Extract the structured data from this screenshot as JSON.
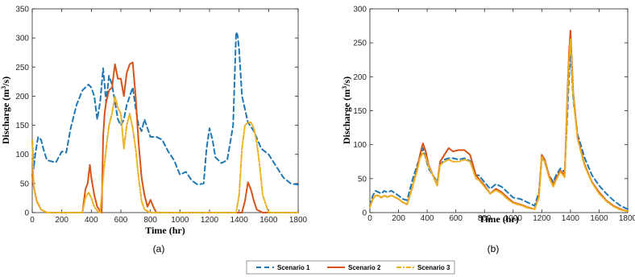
{
  "legend": {
    "items": [
      {
        "label": "Scenario 1",
        "color": "#1f77b4",
        "dash": "6,4"
      },
      {
        "label": "Scenario 2",
        "color": "#d95319",
        "dash": ""
      },
      {
        "label": "Scenario 3",
        "color": "#edb120",
        "dash": "6,2,2,2"
      }
    ]
  },
  "chart_data": [
    {
      "type": "line",
      "panel": "a",
      "caption": "(a)",
      "xlabel": "Time (hr)",
      "ylabel_main": "Discharge (m",
      "ylabel_sup": "3",
      "ylabel_end": "/s)",
      "xlim": [
        0,
        1800
      ],
      "ylim": [
        0,
        350
      ],
      "xticks": [
        0,
        200,
        400,
        600,
        800,
        1000,
        1200,
        1400,
        1600,
        1800
      ],
      "yticks": [
        0,
        50,
        100,
        150,
        200,
        250,
        300,
        350
      ],
      "series": [
        {
          "name": "Scenario 1",
          "x": [
            0,
            10,
            20,
            40,
            60,
            80,
            100,
            130,
            160,
            200,
            230,
            260,
            300,
            340,
            380,
            400,
            420,
            440,
            460,
            480,
            500,
            520,
            540,
            560,
            580,
            600,
            620,
            640,
            660,
            680,
            700,
            720,
            740,
            760,
            780,
            800,
            840,
            880,
            920,
            960,
            1000,
            1040,
            1080,
            1120,
            1160,
            1180,
            1200,
            1220,
            1240,
            1280,
            1320,
            1360,
            1380,
            1390,
            1400,
            1420,
            1460,
            1500,
            1550,
            1600,
            1650,
            1700,
            1750,
            1800
          ],
          "y": [
            125,
            75,
            100,
            130,
            125,
            105,
            90,
            88,
            86,
            105,
            103,
            145,
            185,
            210,
            220,
            215,
            200,
            160,
            190,
            248,
            190,
            235,
            220,
            190,
            160,
            150,
            160,
            185,
            200,
            215,
            180,
            150,
            140,
            160,
            145,
            130,
            130,
            125,
            105,
            90,
            65,
            70,
            55,
            48,
            50,
            110,
            145,
            125,
            95,
            85,
            90,
            150,
            310,
            305,
            280,
            200,
            155,
            140,
            110,
            100,
            80,
            60,
            50,
            48
          ]
        },
        {
          "name": "Scenario 2",
          "x": [
            0,
            10,
            30,
            60,
            100,
            150,
            200,
            250,
            300,
            340,
            360,
            375,
            390,
            400,
            420,
            440,
            460,
            470,
            480,
            490,
            500,
            520,
            540,
            560,
            580,
            600,
            620,
            640,
            660,
            680,
            700,
            720,
            740,
            760,
            780,
            800,
            820,
            840,
            900,
            1000,
            1100,
            1200,
            1300,
            1420,
            1440,
            1460,
            1480,
            1500,
            1520,
            1560,
            1600,
            1700,
            1800
          ],
          "y": [
            65,
            45,
            20,
            5,
            0,
            0,
            0,
            0,
            0,
            0,
            40,
            50,
            82,
            60,
            30,
            10,
            3,
            0,
            130,
            170,
            190,
            210,
            215,
            255,
            230,
            230,
            200,
            240,
            255,
            258,
            200,
            120,
            60,
            30,
            10,
            22,
            10,
            0,
            0,
            0,
            0,
            0,
            0,
            0,
            20,
            52,
            40,
            20,
            5,
            0,
            0,
            0,
            0
          ]
        },
        {
          "name": "Scenario 3",
          "x": [
            0,
            10,
            30,
            60,
            100,
            150,
            200,
            250,
            300,
            340,
            360,
            380,
            400,
            420,
            440,
            460,
            480,
            500,
            520,
            540,
            560,
            580,
            600,
            620,
            630,
            640,
            660,
            680,
            700,
            720,
            740,
            760,
            800,
            900,
            1000,
            1100,
            1200,
            1300,
            1380,
            1400,
            1420,
            1440,
            1460,
            1480,
            1500,
            1520,
            1540,
            1560,
            1600,
            1700,
            1800
          ],
          "y": [
            125,
            45,
            20,
            5,
            0,
            0,
            0,
            0,
            0,
            0,
            25,
            35,
            25,
            10,
            3,
            0,
            60,
            110,
            150,
            170,
            200,
            180,
            170,
            110,
            130,
            150,
            170,
            145,
            110,
            60,
            20,
            5,
            0,
            0,
            0,
            0,
            0,
            0,
            0,
            30,
            110,
            150,
            155,
            155,
            145,
            120,
            80,
            30,
            0,
            0,
            0
          ]
        }
      ]
    },
    {
      "type": "line",
      "panel": "b",
      "caption": "(b)",
      "xlabel": "Time (hr)",
      "ylabel_main": "Discharge (m",
      "ylabel_sup": "3",
      "ylabel_end": "/s)",
      "xlim": [
        0,
        1800
      ],
      "ylim": [
        0,
        300
      ],
      "xticks": [
        0,
        200,
        400,
        600,
        800,
        1000,
        1200,
        1400,
        1600,
        1800
      ],
      "yticks": [
        0,
        50,
        100,
        150,
        200,
        250,
        300
      ],
      "series": [
        {
          "name": "Scenario 1",
          "x": [
            0,
            20,
            40,
            60,
            80,
            100,
            120,
            150,
            180,
            200,
            230,
            260,
            300,
            330,
            350,
            370,
            390,
            410,
            440,
            470,
            490,
            520,
            550,
            580,
            620,
            660,
            700,
            740,
            760,
            800,
            840,
            880,
            920,
            960,
            1000,
            1050,
            1100,
            1150,
            1180,
            1200,
            1220,
            1250,
            1280,
            1300,
            1330,
            1360,
            1380,
            1390,
            1400,
            1420,
            1450,
            1500,
            1550,
            1600,
            1650,
            1700,
            1750,
            1800
          ],
          "y": [
            10,
            25,
            32,
            30,
            28,
            32,
            30,
            32,
            28,
            25,
            20,
            18,
            50,
            70,
            82,
            95,
            80,
            65,
            55,
            45,
            70,
            78,
            80,
            80,
            78,
            80,
            76,
            55,
            55,
            45,
            35,
            42,
            38,
            30,
            22,
            20,
            15,
            10,
            30,
            80,
            75,
            55,
            45,
            55,
            65,
            60,
            150,
            200,
            240,
            165,
            115,
            80,
            55,
            40,
            28,
            18,
            10,
            5
          ]
        },
        {
          "name": "Scenario 2",
          "x": [
            0,
            20,
            40,
            60,
            80,
            100,
            120,
            150,
            180,
            200,
            230,
            260,
            300,
            330,
            350,
            370,
            390,
            410,
            440,
            470,
            490,
            520,
            550,
            580,
            620,
            660,
            700,
            740,
            760,
            800,
            840,
            880,
            920,
            960,
            1000,
            1050,
            1100,
            1150,
            1180,
            1200,
            1220,
            1250,
            1280,
            1300,
            1330,
            1360,
            1380,
            1390,
            1400,
            1420,
            1450,
            1500,
            1550,
            1600,
            1650,
            1700,
            1750,
            1800
          ],
          "y": [
            8,
            20,
            25,
            25,
            22,
            25,
            23,
            25,
            22,
            20,
            15,
            12,
            40,
            65,
            85,
            102,
            90,
            70,
            55,
            40,
            75,
            85,
            95,
            90,
            92,
            92,
            85,
            55,
            50,
            40,
            28,
            35,
            30,
            22,
            15,
            12,
            8,
            5,
            25,
            85,
            78,
            55,
            40,
            50,
            62,
            55,
            180,
            235,
            268,
            175,
            110,
            70,
            45,
            30,
            18,
            10,
            5,
            2
          ]
        },
        {
          "name": "Scenario 3",
          "x": [
            0,
            20,
            40,
            60,
            80,
            100,
            120,
            150,
            180,
            200,
            230,
            260,
            300,
            330,
            350,
            370,
            390,
            410,
            440,
            470,
            490,
            520,
            550,
            580,
            620,
            660,
            700,
            740,
            760,
            800,
            840,
            880,
            920,
            960,
            1000,
            1050,
            1100,
            1150,
            1180,
            1200,
            1220,
            1250,
            1280,
            1300,
            1330,
            1360,
            1380,
            1390,
            1400,
            1420,
            1450,
            1500,
            1550,
            1600,
            1650,
            1700,
            1750,
            1800
          ],
          "y": [
            8,
            20,
            25,
            25,
            22,
            25,
            23,
            25,
            22,
            20,
            15,
            12,
            40,
            62,
            80,
            88,
            82,
            68,
            55,
            40,
            70,
            75,
            78,
            75,
            75,
            78,
            75,
            50,
            48,
            38,
            28,
            33,
            28,
            20,
            14,
            11,
            7,
            5,
            22,
            82,
            75,
            52,
            38,
            48,
            60,
            52,
            170,
            225,
            255,
            170,
            108,
            68,
            44,
            28,
            17,
            9,
            4,
            2
          ]
        }
      ]
    }
  ]
}
